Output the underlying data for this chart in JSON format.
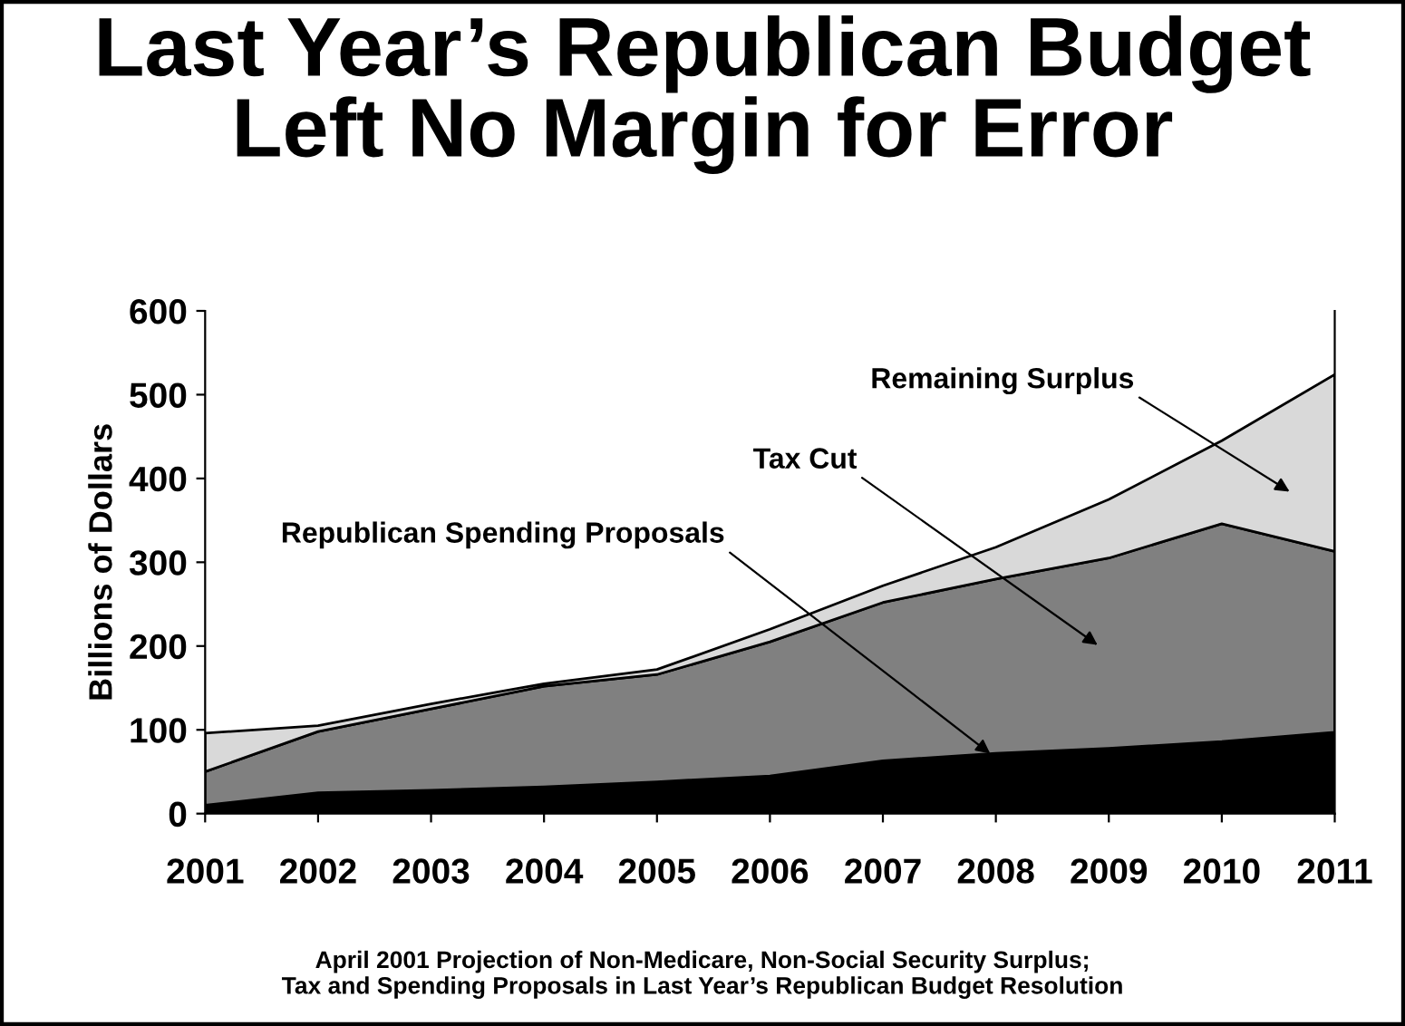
{
  "chart_data": {
    "type": "area",
    "title": "Last Year’s Republican Budget\nLeft No Margin for Error",
    "ylabel": "Billions of Dollars",
    "stacked": true,
    "x": [
      2001,
      2002,
      2003,
      2004,
      2005,
      2006,
      2007,
      2008,
      2009,
      2010,
      2011
    ],
    "series": [
      {
        "name": "Republican Spending Proposals",
        "color": "#000000",
        "values": [
          10,
          25,
          28,
          32,
          38,
          45,
          63,
          72,
          78,
          86,
          97
        ]
      },
      {
        "name": "Tax Cut",
        "color": "#808080",
        "values": [
          40,
          73,
          97,
          120,
          128,
          160,
          189,
          208,
          227,
          260,
          216
        ]
      },
      {
        "name": "Remaining Surplus",
        "color": "#d9d9d9",
        "values": [
          46,
          7,
          6,
          3,
          6,
          15,
          20,
          38,
          70,
          99,
          211
        ]
      }
    ],
    "xlim": [
      2001,
      2011
    ],
    "xticks": [
      2001,
      2002,
      2003,
      2004,
      2005,
      2006,
      2007,
      2008,
      2009,
      2010,
      2011
    ],
    "ylim": [
      0,
      600
    ],
    "yticks": [
      0,
      100,
      200,
      300,
      400,
      500,
      600
    ],
    "grid": false,
    "legend": false,
    "annotations": [
      "April 2001 Projection of Non-Medicare, Non-Social Security Surplus;\nTax and Spending Proposals in Last Year’s Republican Budget Resolution"
    ]
  }
}
